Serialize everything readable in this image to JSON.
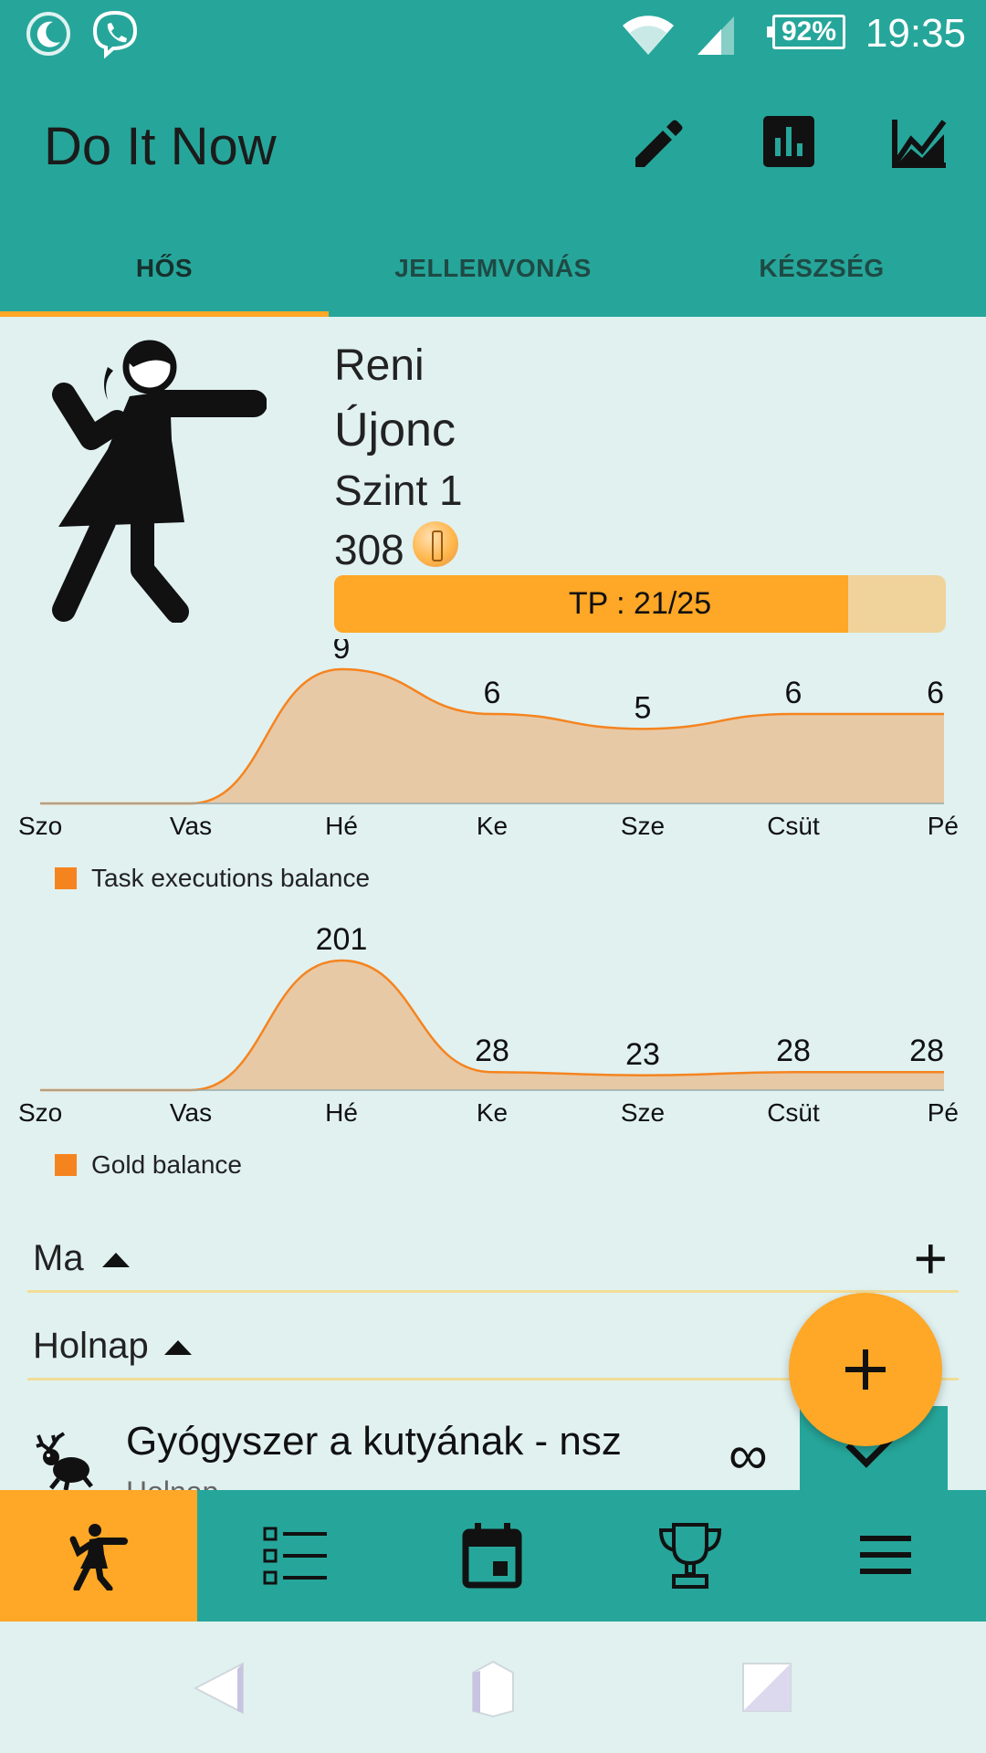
{
  "status_bar": {
    "time": "19:35",
    "battery": "92%"
  },
  "app_bar": {
    "title": "Do It Now",
    "actions": [
      "pencil-icon",
      "bar-chart-icon",
      "line-chart-icon"
    ]
  },
  "tabs": [
    {
      "label": "HŐS",
      "active": true
    },
    {
      "label": "JELLEMVONÁS",
      "active": false
    },
    {
      "label": "KÉSZSÉG",
      "active": false
    }
  ],
  "hero": {
    "name": "Reni",
    "rank": "Újonc",
    "level": "Szint 1",
    "gold": "308",
    "xp": {
      "label": "TP : 21/25",
      "current": 21,
      "max": 25
    }
  },
  "chart_data": [
    {
      "type": "area",
      "categories": [
        "Szo",
        "Vas",
        "Hé",
        "Ke",
        "Sze",
        "Csüt",
        "Pé"
      ],
      "series": [
        {
          "name": "Task executions balance",
          "values": [
            0,
            0,
            9,
            6,
            5,
            6,
            6
          ]
        }
      ],
      "data_labels": [
        "",
        "",
        "9",
        "6",
        "5",
        "6",
        "6"
      ],
      "legend": "bottom-left",
      "color": "#f5841f",
      "fill": "#e8c9a6"
    },
    {
      "type": "area",
      "categories": [
        "Szo",
        "Vas",
        "Hé",
        "Ke",
        "Sze",
        "Csüt",
        "Pé"
      ],
      "series": [
        {
          "name": "Gold balance",
          "values": [
            0,
            0,
            201,
            28,
            23,
            28,
            28
          ]
        }
      ],
      "data_labels": [
        "",
        "",
        "201",
        "28",
        "23",
        "28",
        "28"
      ],
      "legend": "bottom-left",
      "color": "#f5841f",
      "fill": "#e8c9a6"
    }
  ],
  "sections": [
    {
      "label": "Ma"
    },
    {
      "label": "Holnap"
    }
  ],
  "task": {
    "name": "Gyógyszer a kutyának - nsz",
    "subtitle": "Holnap",
    "repeat": "∞"
  },
  "bottom_nav": [
    "hero-icon",
    "checklist-icon",
    "calendar-icon",
    "trophy-icon",
    "menu-icon"
  ],
  "colors": {
    "primary": "#26a69a",
    "accent": "#ffa726",
    "background": "#e0f1f0"
  }
}
